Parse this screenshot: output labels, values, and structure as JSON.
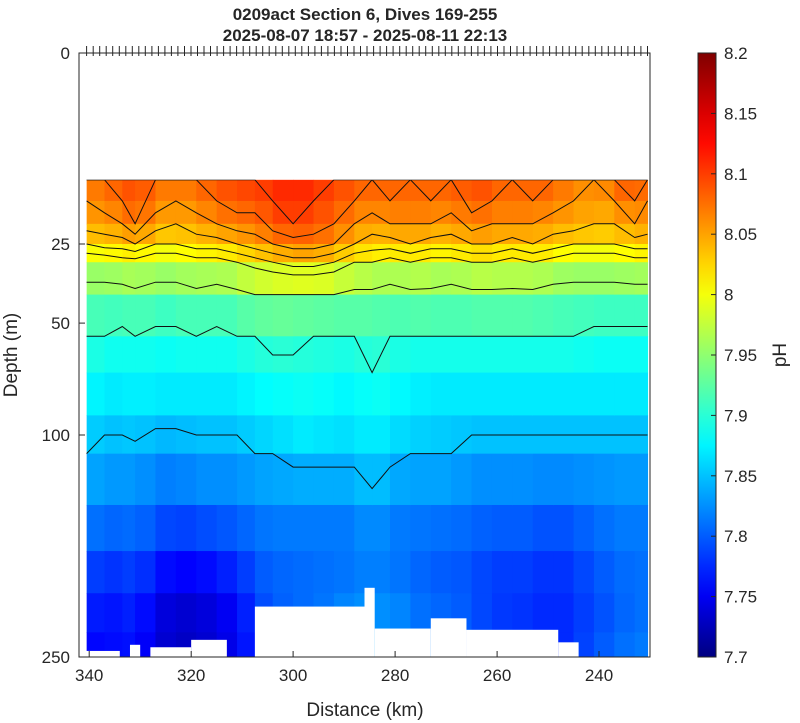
{
  "chart_data": {
    "type": "heatmap",
    "title": "0209act Section 6, Dives 169-255",
    "subtitle": "2025-08-07 18:57 - 2025-08-11 22:13",
    "xlabel": "Distance (km)",
    "ylabel": "Depth (m)",
    "colorbar_label": "pH",
    "xlim": [
      342,
      230
    ],
    "x_reversed": true,
    "x_ticks": [
      340,
      320,
      300,
      280,
      260,
      240
    ],
    "ylim": [
      0,
      250
    ],
    "y_scale": "sqrt",
    "y_reversed": true,
    "y_ticks": [
      0,
      25,
      50,
      100,
      250
    ],
    "clim": [
      7.7,
      8.2
    ],
    "colorbar_ticks": [
      "7.7",
      "7.75",
      "7.8",
      "7.85",
      "7.9",
      "7.95",
      "8",
      "8.05",
      "8.1",
      "8.15",
      "8.2"
    ],
    "colormap": "jet",
    "contour_levels": [
      8.1,
      8.08,
      8.06,
      8.04,
      8.02,
      8.0,
      7.95,
      7.9,
      7.85
    ],
    "depth_grid": [
      11,
      15,
      20,
      25,
      30,
      40,
      55,
      70,
      90,
      110,
      140,
      170,
      200,
      230,
      250
    ],
    "profiles_km": [
      340.5,
      337,
      333.5,
      331,
      327,
      323,
      319,
      315,
      311,
      307.5,
      304,
      300,
      296,
      292,
      288,
      284.5,
      281,
      277,
      273,
      269,
      265,
      261,
      257,
      253,
      249,
      245,
      241,
      237,
      233,
      230.5
    ],
    "profiles_ph": [
      [
        8.07,
        8.06,
        8.05,
        8.02,
        7.98,
        7.93,
        7.9,
        7.89,
        7.87,
        7.85,
        7.83,
        7.8,
        7.78,
        7.76,
        7.75
      ],
      [
        8.08,
        8.07,
        8.05,
        8.03,
        7.98,
        7.93,
        7.9,
        7.88,
        7.86,
        7.84,
        7.82,
        7.79,
        7.77,
        7.76,
        7.76
      ],
      [
        8.09,
        8.08,
        8.06,
        8.03,
        7.99,
        7.93,
        7.89,
        7.88,
        7.86,
        7.84,
        7.82,
        7.79,
        7.77,
        7.76,
        7.76
      ],
      [
        8.1,
        8.09,
        8.08,
        8.04,
        7.99,
        7.94,
        7.9,
        7.88,
        7.87,
        7.84,
        7.82,
        7.8,
        7.78,
        7.77,
        7.76
      ],
      [
        8.08,
        8.07,
        8.05,
        8.02,
        7.98,
        7.93,
        7.89,
        7.88,
        7.86,
        7.83,
        7.81,
        7.78,
        7.75,
        7.74,
        7.74
      ],
      [
        8.07,
        8.06,
        8.04,
        8.02,
        7.98,
        7.93,
        7.89,
        7.88,
        7.86,
        7.83,
        7.8,
        7.77,
        7.74,
        7.73,
        7.73
      ],
      [
        8.08,
        8.07,
        8.05,
        8.03,
        7.99,
        7.94,
        7.9,
        7.88,
        7.86,
        7.84,
        7.81,
        7.77,
        7.74,
        7.73,
        7.73
      ],
      [
        8.09,
        8.08,
        8.06,
        8.03,
        7.99,
        7.93,
        7.89,
        7.88,
        7.86,
        7.84,
        7.81,
        7.78,
        7.75,
        7.74,
        7.74
      ],
      [
        8.1,
        8.09,
        8.07,
        8.04,
        8.0,
        7.94,
        7.9,
        7.88,
        7.86,
        7.84,
        7.81,
        7.79,
        7.76,
        7.75,
        7.75
      ],
      [
        8.1,
        8.09,
        8.07,
        8.05,
        8.01,
        7.95,
        7.9,
        7.89,
        7.87,
        7.85,
        7.82,
        7.8,
        7.79,
        7.78,
        7.78
      ],
      [
        8.11,
        8.1,
        8.09,
        8.06,
        8.02,
        7.95,
        7.91,
        7.89,
        7.87,
        7.85,
        7.82,
        7.81,
        7.8,
        7.8,
        7.8
      ],
      [
        8.12,
        8.11,
        8.1,
        8.07,
        8.03,
        7.95,
        7.91,
        7.89,
        7.88,
        7.86,
        7.82,
        7.81,
        7.8,
        7.81,
        7.81
      ],
      [
        8.11,
        8.1,
        8.09,
        8.07,
        8.03,
        7.95,
        7.9,
        7.89,
        7.88,
        7.86,
        7.82,
        7.81,
        7.81,
        7.81,
        7.82
      ],
      [
        8.1,
        8.09,
        8.08,
        8.06,
        8.02,
        7.95,
        7.9,
        7.89,
        7.87,
        7.86,
        7.82,
        7.81,
        7.81,
        7.82,
        7.83
      ],
      [
        8.09,
        8.08,
        8.06,
        8.04,
        8.0,
        7.94,
        7.9,
        7.88,
        7.87,
        7.86,
        7.82,
        7.81,
        7.82,
        7.83,
        7.84
      ],
      [
        8.08,
        8.07,
        8.05,
        8.03,
        8.0,
        7.94,
        7.91,
        7.9,
        7.88,
        7.87,
        7.84,
        7.82,
        7.82,
        7.83,
        7.84
      ],
      [
        8.09,
        8.08,
        8.06,
        8.03,
        7.99,
        7.93,
        7.9,
        7.89,
        7.87,
        7.86,
        7.82,
        7.81,
        7.82,
        7.83,
        7.84
      ],
      [
        8.08,
        8.07,
        8.06,
        8.04,
        8.0,
        7.94,
        7.9,
        7.88,
        7.87,
        7.85,
        7.82,
        7.81,
        7.81,
        7.82,
        7.83
      ],
      [
        8.09,
        8.08,
        8.06,
        8.03,
        7.99,
        7.94,
        7.9,
        7.88,
        7.86,
        7.85,
        7.82,
        7.8,
        7.8,
        7.81,
        7.82
      ],
      [
        8.08,
        8.07,
        8.05,
        8.03,
        7.99,
        7.93,
        7.9,
        7.88,
        7.86,
        7.85,
        7.82,
        7.8,
        7.8,
        7.81,
        7.81
      ],
      [
        8.1,
        8.09,
        8.07,
        8.04,
        8.0,
        7.94,
        7.9,
        7.88,
        7.86,
        7.84,
        7.81,
        7.8,
        7.79,
        7.8,
        7.8
      ],
      [
        8.09,
        8.08,
        8.06,
        8.04,
        8.0,
        7.94,
        7.9,
        7.88,
        7.86,
        7.84,
        7.81,
        7.79,
        7.78,
        7.79,
        7.79
      ],
      [
        8.08,
        8.07,
        8.06,
        8.03,
        7.99,
        7.94,
        7.9,
        7.88,
        7.86,
        7.84,
        7.81,
        7.79,
        7.78,
        7.78,
        7.78
      ],
      [
        8.09,
        8.08,
        8.06,
        8.04,
        8.0,
        7.94,
        7.9,
        7.88,
        7.86,
        7.84,
        7.81,
        7.79,
        7.78,
        7.78,
        7.78
      ],
      [
        8.08,
        8.07,
        8.05,
        8.03,
        7.99,
        7.93,
        7.9,
        7.88,
        7.86,
        7.84,
        7.8,
        7.78,
        7.77,
        7.77,
        7.77
      ],
      [
        8.07,
        8.06,
        8.05,
        8.02,
        7.98,
        7.93,
        7.9,
        7.88,
        7.86,
        7.84,
        7.81,
        7.79,
        7.78,
        7.78,
        7.78
      ],
      [
        8.06,
        8.05,
        8.04,
        8.02,
        7.98,
        7.93,
        7.89,
        7.88,
        7.86,
        7.84,
        7.81,
        7.8,
        7.79,
        7.79,
        7.8
      ],
      [
        8.08,
        8.06,
        8.04,
        8.02,
        7.98,
        7.93,
        7.89,
        7.88,
        7.86,
        7.84,
        7.82,
        7.81,
        7.8,
        7.8,
        7.81
      ],
      [
        8.1,
        8.08,
        8.06,
        8.03,
        7.99,
        7.93,
        7.89,
        7.88,
        7.86,
        7.84,
        7.82,
        7.81,
        7.81,
        7.81,
        7.82
      ],
      [
        8.07,
        8.06,
        8.05,
        8.03,
        7.99,
        7.93,
        7.89,
        7.88,
        7.86,
        7.84,
        7.82,
        7.81,
        7.81,
        7.81,
        7.82
      ]
    ],
    "bottom_gaps": [
      {
        "x0": 342,
        "x1": 334,
        "top_depth": 245
      },
      {
        "x0": 332,
        "x1": 330,
        "top_depth": 240
      },
      {
        "x0": 328,
        "x1": 320,
        "top_depth": 242
      },
      {
        "x0": 320,
        "x1": 313,
        "top_depth": 236
      },
      {
        "x0": 307.5,
        "x1": 286,
        "top_depth": 210
      },
      {
        "x0": 286,
        "x1": 284,
        "top_depth": 196
      },
      {
        "x0": 284,
        "x1": 273,
        "top_depth": 227
      },
      {
        "x0": 273,
        "x1": 266,
        "top_depth": 219
      },
      {
        "x0": 266,
        "x1": 248,
        "top_depth": 228
      },
      {
        "x0": 248,
        "x1": 244,
        "top_depth": 238
      }
    ]
  }
}
